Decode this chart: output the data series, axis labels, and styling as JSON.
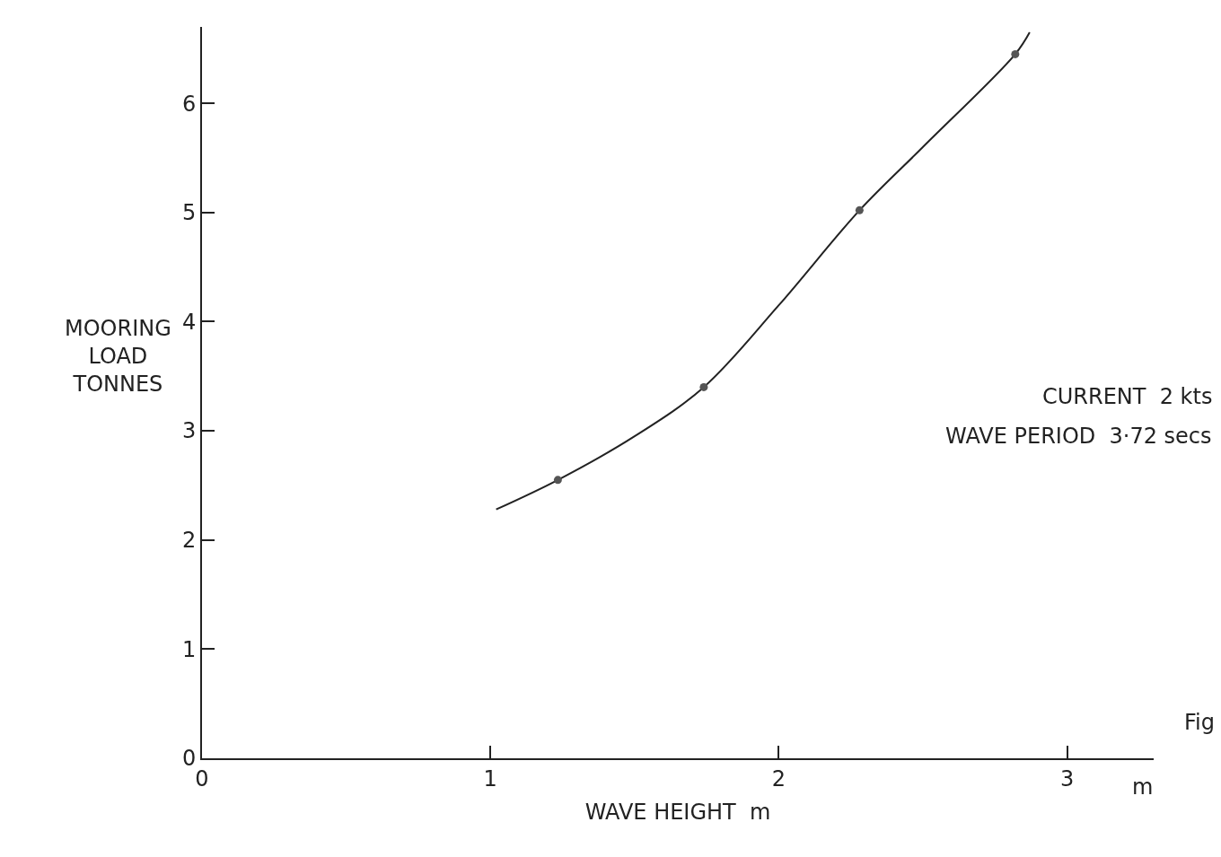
{
  "chart_data": {
    "type": "line",
    "xlabel": "WAVE HEIGHT  m",
    "ylabel": "MOORING LOAD TONNES",
    "xlim": [
      0,
      3.3
    ],
    "ylim": [
      0,
      6.7
    ],
    "xticks": [
      0,
      1,
      2,
      3
    ],
    "yticks": [
      0,
      1,
      2,
      3,
      4,
      5,
      6
    ],
    "series": [
      {
        "type": "line",
        "color": "#222222",
        "marker": "none",
        "x": [
          1.02,
          1.234,
          1.5,
          1.74,
          2.0,
          2.28,
          2.5,
          2.82,
          2.87
        ],
        "values": [
          2.28,
          2.55,
          2.95,
          3.4,
          4.15,
          5.02,
          5.6,
          6.45,
          6.65
        ]
      },
      {
        "type": "scatter",
        "color": "#555555",
        "marker": "circle",
        "x": [
          1.234,
          1.74,
          2.28,
          2.82
        ],
        "values": [
          2.55,
          3.4,
          5.02,
          6.45
        ]
      }
    ],
    "annotations": [
      "CURRENT  2 kts",
      "WAVE PERIOD  3·72 secs",
      "m",
      "Fig"
    ]
  }
}
